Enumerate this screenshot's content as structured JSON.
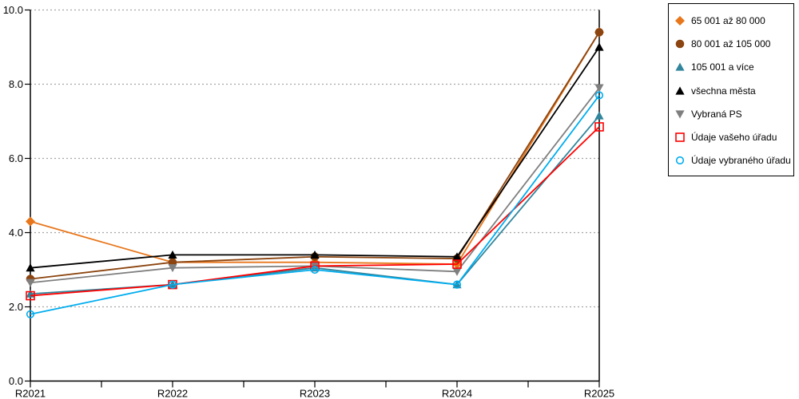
{
  "chart_data": {
    "type": "line",
    "title": "",
    "xlabel": "",
    "ylabel": "",
    "categories": [
      "R2021",
      "R2022",
      "R2023",
      "R2024",
      "R2025"
    ],
    "series": [
      {
        "name": "65 001 až 80 000",
        "color": "#E8761B",
        "marker": "diamond",
        "filled": true,
        "values": [
          4.3,
          3.2,
          3.2,
          3.15,
          9.4
        ]
      },
      {
        "name": "80 001 až 105 000",
        "color": "#8C4510",
        "marker": "circle",
        "filled": true,
        "values": [
          2.75,
          3.2,
          3.35,
          3.3,
          9.4
        ]
      },
      {
        "name": "105 001 a více",
        "color": "#31859C",
        "marker": "triangle-up",
        "filled": true,
        "values": [
          2.35,
          2.6,
          3.05,
          2.6,
          7.15
        ]
      },
      {
        "name": "všechna města",
        "color": "#000000",
        "marker": "triangle-up",
        "filled": true,
        "values": [
          3.05,
          3.4,
          3.4,
          3.35,
          9.0
        ]
      },
      {
        "name": "Vybraná PS",
        "color": "#7F7F7F",
        "marker": "triangle-down",
        "filled": true,
        "values": [
          2.65,
          3.05,
          3.1,
          2.95,
          7.9
        ]
      },
      {
        "name": "Údaje vašeho úřadu",
        "color": "#FF0000",
        "marker": "square",
        "filled": false,
        "values": [
          2.3,
          2.6,
          3.1,
          3.15,
          6.85
        ]
      },
      {
        "name": "Údaje vybraného úřadu",
        "color": "#00ADEE",
        "marker": "circle",
        "filled": false,
        "values": [
          1.8,
          2.6,
          3.0,
          2.6,
          7.7
        ]
      }
    ],
    "ylim": [
      0,
      10
    ],
    "ytick_step": 2,
    "ytick_labels": [
      "0.0",
      "2.0",
      "4.0",
      "6.0",
      "8.0",
      "10.0"
    ],
    "x_minor_ticks_between_categories": 1,
    "grid": "horizontal-dotted",
    "legend_position": "right-outside"
  },
  "colors": {
    "axis": "#000000",
    "grid": "#A6A6A6",
    "background": "#FFFFFF",
    "tick_label": "#000000"
  }
}
